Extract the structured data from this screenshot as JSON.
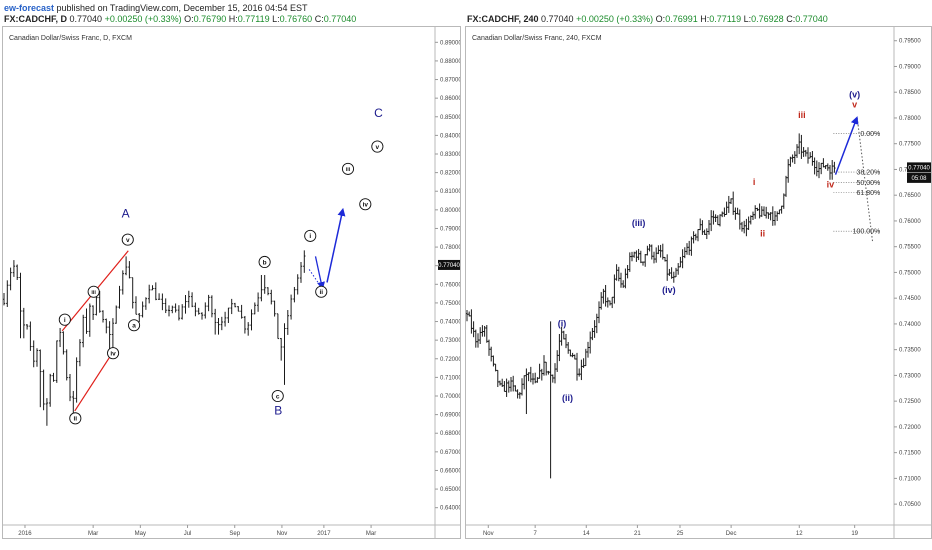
{
  "publisher": {
    "author": "ew-forecast",
    "rest": " published on TradingView.com, December 15, 2016 04:54 EST"
  },
  "colors": {
    "bar": "#1a1a1a",
    "wave_navy": "#1b1a8c",
    "wave_red": "#c0281b",
    "channel": "#e0201b",
    "arrow": "#1d2ad8",
    "fib_line": "#555555",
    "up": "#1c8c2c",
    "price_box": "#111111"
  },
  "chart_data": [
    {
      "type": "ohlc",
      "timeframe": "D",
      "symbol": "FX:CADCHF, D",
      "quote": {
        "last": "0.77040",
        "change": "+0.00250 (+0.33%)",
        "o_label": "O:",
        "o": "0.76790",
        "h_label": "H:",
        "h": "0.77119",
        "l_label": "L:",
        "l": "0.76760",
        "c_label": "C:",
        "c": "0.77040"
      },
      "title": "Canadian Dollar/Swiss Franc, D, FXCM",
      "ylim": [
        0.635,
        0.895
      ],
      "yticks": [
        "0.64000",
        "0.65000",
        "0.66000",
        "0.67000",
        "0.68000",
        "0.69000",
        "0.70000",
        "0.71000",
        "0.72000",
        "0.73000",
        "0.74000",
        "0.75000",
        "0.76000",
        "0.77000",
        "0.78000",
        "0.79000",
        "0.80000",
        "0.81000",
        "0.82000",
        "0.83000",
        "0.84000",
        "0.85000",
        "0.86000",
        "0.87000",
        "0.88000",
        "0.89000"
      ],
      "xlim": [
        0,
        82
      ],
      "xticks": [
        {
          "label": "2016",
          "x": 4
        },
        {
          "label": "Mar",
          "x": 17
        },
        {
          "label": "May",
          "x": 26
        },
        {
          "label": "Jul",
          "x": 35
        },
        {
          "label": "Sep",
          "x": 44
        },
        {
          "label": "Nov",
          "x": 53
        },
        {
          "label": "2017",
          "x": 61
        },
        {
          "label": "Mar",
          "x": 70
        }
      ],
      "last_price_label": "0.77040",
      "last_price": 0.7704,
      "path": [
        [
          0,
          0.752
        ],
        [
          1,
          0.766
        ],
        [
          2,
          0.77
        ],
        [
          2.8,
          0.758
        ],
        [
          3.4,
          0.735
        ],
        [
          4.2,
          0.74
        ],
        [
          5,
          0.725
        ],
        [
          5.8,
          0.717
        ],
        [
          6.6,
          0.73
        ],
        [
          7.2,
          0.7
        ],
        [
          8,
          0.691
        ],
        [
          8.8,
          0.713
        ],
        [
          9.4,
          0.707
        ],
        [
          10,
          0.727
        ],
        [
          10.8,
          0.736
        ],
        [
          11.4,
          0.722
        ],
        [
          12.2,
          0.706
        ],
        [
          13,
          0.694
        ],
        [
          13.8,
          0.716
        ],
        [
          14.6,
          0.731
        ],
        [
          15.2,
          0.742
        ],
        [
          15.8,
          0.735
        ],
        [
          16.4,
          0.75
        ],
        [
          17,
          0.742
        ],
        [
          17.6,
          0.755
        ],
        [
          18.2,
          0.748
        ],
        [
          18.8,
          0.741
        ],
        [
          19.6,
          0.736
        ],
        [
          20.4,
          0.729
        ],
        [
          21.2,
          0.747
        ],
        [
          22,
          0.759
        ],
        [
          22.6,
          0.764
        ],
        [
          23.2,
          0.771
        ],
        [
          23.8,
          0.767
        ],
        [
          24.4,
          0.752
        ],
        [
          25,
          0.745
        ],
        [
          25.6,
          0.739
        ],
        [
          26.2,
          0.746
        ],
        [
          27,
          0.753
        ],
        [
          27.8,
          0.76
        ],
        [
          28.6,
          0.755
        ],
        [
          29.4,
          0.752
        ],
        [
          30.2,
          0.748
        ],
        [
          31,
          0.743
        ],
        [
          31.8,
          0.75
        ],
        [
          32.6,
          0.745
        ],
        [
          33.4,
          0.741
        ],
        [
          34.2,
          0.749
        ],
        [
          35,
          0.754
        ],
        [
          35.8,
          0.75
        ],
        [
          36.6,
          0.745
        ],
        [
          37.4,
          0.741
        ],
        [
          38.2,
          0.747
        ],
        [
          39,
          0.752
        ],
        [
          39.8,
          0.745
        ],
        [
          40.6,
          0.738
        ],
        [
          41.4,
          0.742
        ],
        [
          42.2,
          0.74
        ],
        [
          43,
          0.747
        ],
        [
          43.8,
          0.751
        ],
        [
          44.6,
          0.748
        ],
        [
          45.4,
          0.741
        ],
        [
          46.2,
          0.736
        ],
        [
          47,
          0.743
        ],
        [
          47.8,
          0.749
        ],
        [
          48.6,
          0.755
        ],
        [
          49.4,
          0.761
        ],
        [
          50.2,
          0.758
        ],
        [
          51,
          0.75
        ],
        [
          51.6,
          0.742
        ],
        [
          52.2,
          0.732
        ],
        [
          52.8,
          0.726
        ],
        [
          53.4,
          0.733
        ],
        [
          54,
          0.742
        ],
        [
          54.6,
          0.749
        ],
        [
          55.2,
          0.756
        ],
        [
          55.8,
          0.762
        ],
        [
          56.4,
          0.766
        ],
        [
          56.8,
          0.771
        ],
        [
          57.2,
          0.774
        ],
        [
          57.7,
          0.77
        ]
      ],
      "lows": [
        [
          3.4,
          0.731
        ],
        [
          7.2,
          0.694
        ],
        [
          8,
          0.684
        ],
        [
          13,
          0.689
        ],
        [
          20.4,
          0.724
        ],
        [
          40.6,
          0.733
        ],
        [
          52.8,
          0.719
        ],
        [
          53.4,
          0.706
        ]
      ],
      "highs": [
        [
          2,
          0.773
        ],
        [
          15.8,
          0.747
        ],
        [
          23.2,
          0.775
        ],
        [
          49.4,
          0.765
        ],
        [
          57.2,
          0.777
        ]
      ],
      "channel": [
        [
          [
            11.1,
            0.735
          ],
          [
            23.7,
            0.778
          ]
        ],
        [
          [
            13.5,
            0.692
          ],
          [
            21.1,
            0.725
          ]
        ]
      ],
      "projection": {
        "dotted": [
          [
            58.2,
            0.768
          ],
          [
            60.6,
            0.758
          ]
        ],
        "dashed_arrow": [
          [
            59.4,
            0.775
          ],
          [
            60.7,
            0.758
          ]
        ],
        "arrow": [
          [
            61.6,
            0.761
          ],
          [
            64.6,
            0.8
          ]
        ]
      },
      "waves": [
        {
          "label": "A",
          "x": 23.2,
          "y": 0.796,
          "style": "cap",
          "color": "navy"
        },
        {
          "label": "B",
          "x": 52.3,
          "y": 0.69,
          "style": "cap",
          "color": "navy"
        },
        {
          "label": "C",
          "x": 71.4,
          "y": 0.85,
          "style": "cap",
          "color": "navy"
        },
        {
          "label": "i",
          "x": 11.6,
          "y": 0.741,
          "style": "circle"
        },
        {
          "label": "ii",
          "x": 13.6,
          "y": 0.688,
          "style": "circle"
        },
        {
          "label": "iii",
          "x": 17.1,
          "y": 0.756,
          "style": "circle"
        },
        {
          "label": "iv",
          "x": 20.8,
          "y": 0.723,
          "style": "circle"
        },
        {
          "label": "v",
          "x": 23.6,
          "y": 0.784,
          "style": "circle"
        },
        {
          "label": "a",
          "x": 24.8,
          "y": 0.738,
          "style": "circle"
        },
        {
          "label": "b",
          "x": 49.7,
          "y": 0.772,
          "style": "circle"
        },
        {
          "label": "c",
          "x": 52.2,
          "y": 0.7,
          "style": "circle"
        },
        {
          "label": "i",
          "x": 58.4,
          "y": 0.786,
          "style": "circle"
        },
        {
          "label": "ii",
          "x": 60.5,
          "y": 0.756,
          "style": "circle"
        },
        {
          "label": "iii",
          "x": 65.6,
          "y": 0.822,
          "style": "circle"
        },
        {
          "label": "iv",
          "x": 68.9,
          "y": 0.803,
          "style": "circle"
        },
        {
          "label": "v",
          "x": 71.2,
          "y": 0.834,
          "style": "circle"
        }
      ]
    },
    {
      "type": "ohlc",
      "timeframe": "240",
      "symbol": "FX:CADCHF, 240",
      "quote": {
        "last": "0.77040",
        "change": "+0.00250 (+0.33%)",
        "o_label": "O:",
        "o": "0.76991",
        "h_label": "H:",
        "h": "0.77119",
        "l_label": "L:",
        "l": "0.76928",
        "c_label": "C:",
        "c": "0.77040"
      },
      "title": "Canadian Dollar/Swiss Franc, 240, FXCM",
      "ylim": [
        0.7025,
        0.7965
      ],
      "yticks": [
        "0.70500",
        "0.71000",
        "0.71500",
        "0.72000",
        "0.72500",
        "0.73000",
        "0.73500",
        "0.74000",
        "0.74500",
        "0.75000",
        "0.75500",
        "0.76000",
        "0.76500",
        "0.77000",
        "0.77500",
        "0.78000",
        "0.78500",
        "0.79000",
        "0.79500"
      ],
      "xlim": [
        0,
        100
      ],
      "xticks": [
        {
          "label": "Nov",
          "x": 5
        },
        {
          "label": "7",
          "x": 16
        },
        {
          "label": "14",
          "x": 28
        },
        {
          "label": "21",
          "x": 40
        },
        {
          "label": "25",
          "x": 50
        },
        {
          "label": "Dec",
          "x": 62
        },
        {
          "label": "12",
          "x": 78
        },
        {
          "label": "19",
          "x": 91
        }
      ],
      "last_price_label": "0.77040",
      "last_price": 0.7704,
      "time_label": "05:08",
      "path": [
        [
          0,
          0.742
        ],
        [
          2,
          0.737
        ],
        [
          4,
          0.739
        ],
        [
          6,
          0.732
        ],
        [
          8,
          0.727
        ],
        [
          10,
          0.7285
        ],
        [
          12,
          0.726
        ],
        [
          14,
          0.7305
        ],
        [
          16,
          0.728
        ],
        [
          18,
          0.732
        ],
        [
          19.5,
          0.73
        ],
        [
          20.5,
          0.7305
        ],
        [
          22,
          0.738
        ],
        [
          23.5,
          0.735
        ],
        [
          25,
          0.734
        ],
        [
          26,
          0.7305
        ],
        [
          27.5,
          0.733
        ],
        [
          29,
          0.738
        ],
        [
          30.5,
          0.741
        ],
        [
          32,
          0.746
        ],
        [
          33.5,
          0.743
        ],
        [
          35,
          0.75
        ],
        [
          36.5,
          0.747
        ],
        [
          38,
          0.752
        ],
        [
          39.5,
          0.754
        ],
        [
          41,
          0.752
        ],
        [
          42.5,
          0.755
        ],
        [
          44,
          0.753
        ],
        [
          45.5,
          0.754
        ],
        [
          47,
          0.75
        ],
        [
          48.5,
          0.7485
        ],
        [
          50,
          0.7515
        ],
        [
          51.5,
          0.7545
        ],
        [
          53,
          0.756
        ],
        [
          54.5,
          0.759
        ],
        [
          56,
          0.7575
        ],
        [
          57.5,
          0.761
        ],
        [
          59,
          0.76
        ],
        [
          60.5,
          0.762
        ],
        [
          62,
          0.7635
        ],
        [
          63.5,
          0.761
        ],
        [
          65,
          0.7585
        ],
        [
          66.5,
          0.76
        ],
        [
          68,
          0.762
        ],
        [
          69.5,
          0.761
        ],
        [
          71,
          0.762
        ],
        [
          72.5,
          0.76
        ],
        [
          74,
          0.764
        ],
        [
          75.5,
          0.771
        ],
        [
          77,
          0.773
        ],
        [
          78,
          0.7745
        ],
        [
          79.5,
          0.7725
        ],
        [
          81,
          0.772
        ],
        [
          82.5,
          0.77
        ],
        [
          84,
          0.771
        ],
        [
          85.5,
          0.77
        ],
        [
          86.5,
          0.7705
        ]
      ],
      "lows": [
        [
          14,
          0.7225
        ],
        [
          19.5,
          0.71
        ],
        [
          20.5,
          0.729
        ],
        [
          48.5,
          0.748
        ],
        [
          85.5,
          0.768
        ]
      ],
      "highs": [
        [
          19.5,
          0.7405
        ],
        [
          78,
          0.777
        ]
      ],
      "projection": {
        "arrow": [
          [
            86.5,
            0.769
          ],
          [
            91.5,
            0.78
          ]
        ],
        "dotted": [
          [
            91.6,
            0.78
          ],
          [
            95.2,
            0.756
          ]
        ]
      },
      "fib_levels": [
        {
          "label": "0.00%",
          "y": 0.777
        },
        {
          "label": "38.20%",
          "y": 0.7695
        },
        {
          "label": "50.00%",
          "y": 0.7675
        },
        {
          "label": "61.80%",
          "y": 0.7655
        },
        {
          "label": "100.00%",
          "y": 0.758
        }
      ],
      "waves": [
        {
          "label": "(i)",
          "x": 22.3,
          "y": 0.7395,
          "color": "navy"
        },
        {
          "label": "(ii)",
          "x": 23.6,
          "y": 0.725,
          "color": "navy"
        },
        {
          "label": "(iii)",
          "x": 40.3,
          "y": 0.759,
          "color": "navy"
        },
        {
          "label": "(iv)",
          "x": 47.4,
          "y": 0.746,
          "color": "navy"
        },
        {
          "label": "(v)",
          "x": 91.0,
          "y": 0.784,
          "color": "navy"
        },
        {
          "label": "i",
          "x": 67.4,
          "y": 0.767,
          "color": "red"
        },
        {
          "label": "ii",
          "x": 69.4,
          "y": 0.757,
          "color": "red"
        },
        {
          "label": "iii",
          "x": 78.6,
          "y": 0.78,
          "color": "red"
        },
        {
          "label": "iv",
          "x": 85.3,
          "y": 0.7665,
          "color": "red"
        },
        {
          "label": "v",
          "x": 91.0,
          "y": 0.782,
          "color": "red"
        }
      ]
    }
  ]
}
